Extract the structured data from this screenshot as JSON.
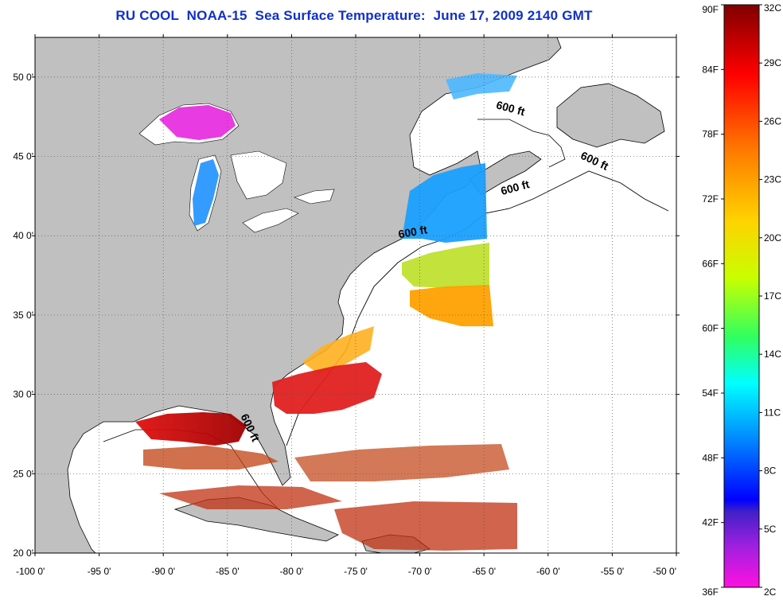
{
  "title": "RU COOL  NOAA-15  Sea Surface Temperature:  June 17, 2009 2140 GMT",
  "map": {
    "lon_range": [
      -100,
      -50
    ],
    "lat_range": [
      20,
      52.5
    ],
    "x_ticks": [
      {
        "value": -100,
        "label": "-100 0'"
      },
      {
        "value": -95,
        "label": "-95 0'"
      },
      {
        "value": -90,
        "label": "-90 0'"
      },
      {
        "value": -85,
        "label": "-85 0'"
      },
      {
        "value": -80,
        "label": "-80 0'"
      },
      {
        "value": -75,
        "label": "-75 0'"
      },
      {
        "value": -70,
        "label": "-70 0'"
      },
      {
        "value": -65,
        "label": "-65 0'"
      },
      {
        "value": -60,
        "label": "-60 0'"
      },
      {
        "value": -55,
        "label": "-55 0'"
      },
      {
        "value": -50,
        "label": "-50 0'"
      }
    ],
    "y_ticks": [
      {
        "value": 20,
        "label": "20 0'"
      },
      {
        "value": 25,
        "label": "25 0'"
      },
      {
        "value": 30,
        "label": "30 0'"
      },
      {
        "value": 35,
        "label": "35 0'"
      },
      {
        "value": 40,
        "label": "40 0'"
      },
      {
        "value": 45,
        "label": "45 0'"
      },
      {
        "value": 50,
        "label": "50 0'"
      }
    ],
    "grid": "dotted",
    "contour_labels": [
      {
        "text": "600 ft",
        "lon": -63.0,
        "lat": 47.8,
        "angle": 15
      },
      {
        "text": "600 ft",
        "lon": -56.5,
        "lat": 44.5,
        "angle": 25
      },
      {
        "text": "600 ft",
        "lon": -62.5,
        "lat": 42.8,
        "angle": -15
      },
      {
        "text": "600 ft",
        "lon": -70.5,
        "lat": 40.0,
        "angle": -10
      },
      {
        "text": "600 ft",
        "lon": -83.5,
        "lat": 27.8,
        "angle": 65
      }
    ],
    "colors": {
      "land": "#c0c0c0",
      "ocean": "#ffffff"
    }
  },
  "colorbar": {
    "f_labels": [
      "90F",
      "84F",
      "78F",
      "72F",
      "66F",
      "60F",
      "54F",
      "48F",
      "42F",
      "36F"
    ],
    "c_labels": [
      "32C",
      "29C",
      "26C",
      "23C",
      "20C",
      "17C",
      "14C",
      "11C",
      "8C",
      "5C",
      "2C"
    ],
    "range_c": [
      2,
      32
    ]
  }
}
